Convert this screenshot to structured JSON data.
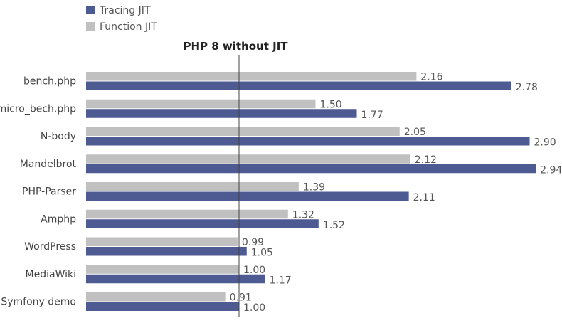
{
  "chart_data": {
    "type": "bar",
    "orientation": "horizontal",
    "title": "",
    "xlabel": "",
    "ylabel": "",
    "categories": [
      "bench.php",
      "micro_bech.php",
      "N-body",
      "Mandelbrot",
      "PHP-Parser",
      "Amphp",
      "WordPress",
      "MediaWiki",
      "Symfony demo"
    ],
    "series": [
      {
        "name": "Function JIT",
        "color": "#c0c0c0",
        "values": [
          2.16,
          1.5,
          2.05,
          2.12,
          1.39,
          1.32,
          0.99,
          1.0,
          0.91
        ],
        "labels": [
          "2.16",
          "1.50",
          "2.05",
          "2.12",
          "1.39",
          "1.32",
          "0.99",
          "1.00",
          "0.91"
        ]
      },
      {
        "name": "Tracing JIT",
        "color": "#4e5a92",
        "values": [
          2.78,
          1.77,
          2.9,
          2.94,
          2.11,
          1.52,
          1.05,
          1.17,
          1.0
        ],
        "labels": [
          "2.78",
          "1.77",
          "2.90",
          "2.94",
          "2.11",
          "1.52",
          "1.05",
          "1.17",
          "1.00"
        ]
      }
    ],
    "legend": {
      "position": "top-left",
      "order": [
        "Tracing JIT",
        "Function JIT"
      ]
    },
    "baseline": {
      "value": 1.0,
      "label": "PHP 8 without JIT"
    },
    "xlim": [
      0,
      3.0
    ],
    "grid": false
  }
}
